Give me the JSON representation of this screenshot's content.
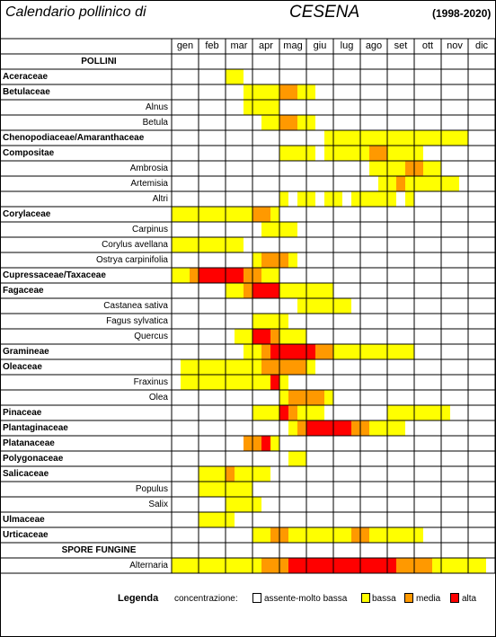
{
  "header": {
    "title_left": "Calendario pollinico di",
    "city": "CESENA",
    "years": "(1998-2020)"
  },
  "months": [
    "gen",
    "feb",
    "mar",
    "apr",
    "mag",
    "giu",
    "lug",
    "ago",
    "set",
    "ott",
    "nov",
    "dic"
  ],
  "colors": {
    "none": "#ffffff",
    "bassa": "#ffff00",
    "media": "#ff9900",
    "alta": "#ff0000",
    "grid": "#000000"
  },
  "rows": [
    {
      "label": "POLLINI",
      "kind": "section",
      "cells": ""
    },
    {
      "label": "Aceraceae",
      "kind": "family",
      "cells": "000000BB000000000000000000000000000000000000000000"
    },
    {
      "label": "Betulaceae",
      "kind": "family",
      "cells": "00000000BBBBMMBB0000000000000000000000000000000000"
    },
    {
      "label": "Alnus",
      "kind": "species",
      "cells": "00000000BBBB000000000000000000000000000000000000"
    },
    {
      "label": "Betula",
      "kind": "species",
      "cells": "0000000000BBMMBB00000000000000000000000000000000"
    },
    {
      "label": "Chenopodiaceae/Amaranthaceae",
      "kind": "family",
      "cells": "00000000000000000BBBBBBBBBBBBBBBB000000000"
    },
    {
      "label": "Compositae",
      "kind": "family",
      "cells": "000000000000BBBB0BBBBBMMBBBB00000000000"
    },
    {
      "label": "Ambrosia",
      "kind": "species",
      "cells": "0000000000000000000000BBBBMMBB000000000000"
    },
    {
      "label": "Artemisia",
      "kind": "species",
      "cells": "00000000000000000000000BBMBBBBBB0000000000"
    },
    {
      "label": "Altri",
      "kind": "species",
      "cells": "000000000000B0BB0BB0BBBBB0B00000000000000"
    },
    {
      "label": "Corylaceae",
      "kind": "family",
      "cells": "BBBBBBBBBMMB000000000000000000000000000000"
    },
    {
      "label": "Carpinus",
      "kind": "species",
      "cells": "0000000000BBBB000000000000000000000000000000"
    },
    {
      "label": "Corylus avellana",
      "kind": "species",
      "cells": "BBBBBBBB000000000000000000000000000000000000"
    },
    {
      "label": "Ostrya carpinifolia",
      "kind": "species",
      "cells": "000000000BMMMB0000000000000000000000000000"
    },
    {
      "label": "Cupressaceae/Taxaceae",
      "kind": "family",
      "cells": "BBMAAAAAMMBB00000000000000000000000000000000"
    },
    {
      "label": "Fagaceae",
      "kind": "family",
      "cells": "000000BBMAAABBBBBB000000000000000000000000"
    },
    {
      "label": "Castanea sativa",
      "kind": "species",
      "cells": "00000000000000BBBBBB0000000000000000000000"
    },
    {
      "label": "Fagus sylvatica",
      "kind": "species",
      "cells": "000000000BBBB00000000000000000000000000000"
    },
    {
      "label": "Quercus",
      "kind": "species",
      "cells": "0000000BBAAMBBB0000000000000000000000000000"
    },
    {
      "label": "Gramineae",
      "kind": "family",
      "cells": "00000000BBMAAAAAMMBBBBBBBBB00000000000"
    },
    {
      "label": "Oleaceae",
      "kind": "family",
      "cells": "0BBBBBBBBBMMMMMB0000000000000000000000"
    },
    {
      "label": "Fraxinus",
      "kind": "species",
      "cells": "0BBBBBBBBBBAB000000000000000000000000000"
    },
    {
      "label": "Olea",
      "kind": "species",
      "cells": "000000000000BMMMMB0000000000000000000000"
    },
    {
      "label": "Pinaceae",
      "kind": "family",
      "cells": "000000000BBBAMBBB0000000BBBBBBB000000"
    },
    {
      "label": "Plantaginaceae",
      "kind": "family",
      "cells": "0000000000000BMAAAAAMMBBBB000000000000"
    },
    {
      "label": "Platanaceae",
      "kind": "family",
      "cells": "00000000MMAB000000000000000000000000000"
    },
    {
      "label": "Polygonaceae",
      "kind": "family",
      "cells": "0000000000000BB00000000000000000000000000"
    },
    {
      "label": "Salicaceae",
      "kind": "family",
      "cells": "000BBBMBBBB0000000000000000000000000000"
    },
    {
      "label": "Populus",
      "kind": "species",
      "cells": "000BBBBBB0000000000000000000000000000000"
    },
    {
      "label": "Salix",
      "kind": "species",
      "cells": "000000BBBB0000000000000000000000000000000"
    },
    {
      "label": "Ulmaceae",
      "kind": "family",
      "cells": "000BBBB00000000000000000000000000000000"
    },
    {
      "label": "Urticaceae",
      "kind": "family",
      "cells": "000000000BBMMBBBBBBBMMBBBBBB0000000000"
    },
    {
      "label": "SPORE FUNGINE",
      "kind": "section",
      "cells": ""
    },
    {
      "label": "Alternaria",
      "kind": "species",
      "cells": "BBBBBBBBBBMMMAAAAAAAAAAAAMMMMBBBBBB"
    }
  ],
  "legend": {
    "title": "Legenda",
    "concentration_label": "concentrazione:",
    "items": [
      {
        "label": "assente-molto bassa",
        "color": "#ffffff"
      },
      {
        "label": "bassa",
        "color": "#ffff00"
      },
      {
        "label": "media",
        "color": "#ff9900"
      },
      {
        "label": "alta",
        "color": "#ff0000"
      }
    ]
  }
}
